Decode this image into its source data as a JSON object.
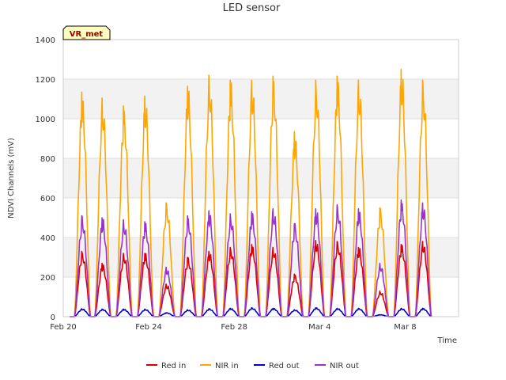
{
  "chart_data": {
    "type": "line",
    "title": "LED sensor",
    "xlabel": "Time",
    "ylabel": "NDVI Channels (mV)",
    "ylim": [
      0,
      1400
    ],
    "yticks": [
      0,
      200,
      400,
      600,
      800,
      1000,
      1200,
      1400
    ],
    "xlim_days": [
      0,
      18.5
    ],
    "xticks": [
      {
        "label": "Feb 20",
        "day": 0
      },
      {
        "label": "Feb 24",
        "day": 4
      },
      {
        "label": "Feb 28",
        "day": 8
      },
      {
        "label": "Mar 4",
        "day": 12
      },
      {
        "label": "Mar 8",
        "day": 16
      }
    ],
    "badge": "VR_met",
    "colors": {
      "Red in": "#dd0000",
      "NIR in": "#ffa500",
      "Red out": "#0000cc",
      "NIR out": "#9a32cd",
      "band": "#f2f2f2",
      "grid": "#dddddd",
      "badge_fill": "#ffffc0"
    },
    "peak_days": [
      0.9,
      1.85,
      2.85,
      3.85,
      4.85,
      5.85,
      6.85,
      7.85,
      8.85,
      9.85,
      10.85,
      11.85,
      12.85,
      13.85,
      14.85,
      15.85,
      16.85
    ],
    "series": [
      {
        "name": "Red in",
        "peaks": [
          330,
          270,
          320,
          320,
          165,
          300,
          330,
          350,
          365,
          350,
          215,
          385,
          380,
          350,
          130,
          365,
          380
        ]
      },
      {
        "name": "NIR in",
        "peaks": [
          1135,
          1105,
          1065,
          1115,
          575,
          1165,
          1220,
          1195,
          1195,
          1215,
          935,
          1195,
          1215,
          1195,
          550,
          1250,
          1195
        ]
      },
      {
        "name": "Red out",
        "peaks": [
          40,
          38,
          38,
          38,
          20,
          35,
          40,
          42,
          45,
          42,
          35,
          45,
          42,
          42,
          10,
          42,
          42
        ]
      },
      {
        "name": "NIR out",
        "peaks": [
          510,
          500,
          490,
          480,
          250,
          510,
          535,
          520,
          530,
          545,
          470,
          545,
          565,
          545,
          270,
          590,
          575
        ]
      }
    ]
  }
}
